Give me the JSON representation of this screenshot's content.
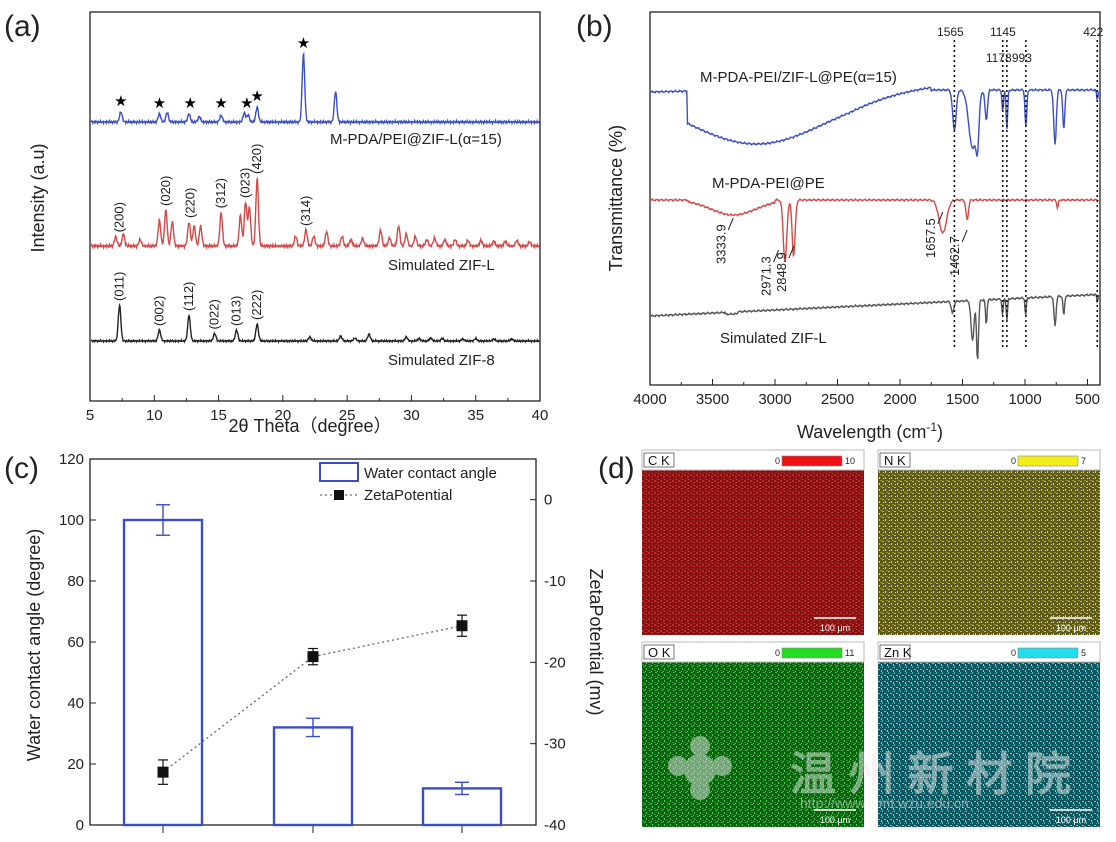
{
  "panels": {
    "a": "(a)",
    "b": "(b)",
    "c": "(c)",
    "d": "(d)"
  },
  "chart_data": [
    {
      "type": "line",
      "panel": "(a)",
      "xlabel": "2θ Theta（degree）",
      "ylabel": "Intensity (a.u)",
      "xlim": [
        5,
        40
      ],
      "xticks": [
        5,
        10,
        15,
        20,
        25,
        30,
        35,
        40
      ],
      "series": [
        {
          "name": "M-PDA/PEI@ZIF-L(α=15)",
          "color": "#3a4fc4",
          "peaks": [
            [
              7.4,
              0.15
            ],
            [
              10.4,
              0.12
            ],
            [
              11.0,
              0.14
            ],
            [
              12.7,
              0.12
            ],
            [
              13.5,
              0.08
            ],
            [
              15.2,
              0.1
            ],
            [
              17.0,
              0.13
            ],
            [
              17.3,
              0.1
            ],
            [
              18.0,
              0.22
            ],
            [
              21.6,
              1.0
            ],
            [
              24.1,
              0.45
            ]
          ],
          "stars_at": [
            7.4,
            10.4,
            12.8,
            15.2,
            17.2,
            18.0,
            21.6
          ]
        },
        {
          "name": "Simulated  ZIF-L",
          "color": "#d04a4a",
          "peaks": [
            [
              7.0,
              0.12
            ],
            [
              7.6,
              0.15
            ],
            [
              8.9,
              0.08
            ],
            [
              10.4,
              0.32
            ],
            [
              10.9,
              0.45
            ],
            [
              11.4,
              0.3
            ],
            [
              12.7,
              0.3
            ],
            [
              13.1,
              0.25
            ],
            [
              13.6,
              0.25
            ],
            [
              15.2,
              0.42
            ],
            [
              16.7,
              0.38
            ],
            [
              17.1,
              0.55
            ],
            [
              17.4,
              0.48
            ],
            [
              18.0,
              0.85
            ],
            [
              21.0,
              0.12
            ],
            [
              21.8,
              0.2
            ],
            [
              22.4,
              0.12
            ],
            [
              23.4,
              0.18
            ],
            [
              24.6,
              0.12
            ],
            [
              25.3,
              0.08
            ],
            [
              26.2,
              0.1
            ],
            [
              27.6,
              0.2
            ],
            [
              28.3,
              0.1
            ],
            [
              29.0,
              0.25
            ],
            [
              29.6,
              0.15
            ],
            [
              30.3,
              0.12
            ],
            [
              31.2,
              0.08
            ],
            [
              31.8,
              0.1
            ],
            [
              32.6,
              0.08
            ],
            [
              33.4,
              0.08
            ],
            [
              34.4,
              0.07
            ],
            [
              35.4,
              0.07
            ],
            [
              36.4,
              0.06
            ],
            [
              37.3,
              0.06
            ],
            [
              38.2,
              0.07
            ],
            [
              39.2,
              0.05
            ]
          ],
          "labels": [
            [
              7.3,
              "(200)"
            ],
            [
              10.9,
              "(020)"
            ],
            [
              12.8,
              "(220)"
            ],
            [
              15.2,
              "(312)"
            ],
            [
              17.1,
              "(023)"
            ],
            [
              18.0,
              "(420)"
            ],
            [
              21.8,
              "(314)"
            ]
          ]
        },
        {
          "name": "Simulated  ZIF-8",
          "color": "#222222",
          "peaks": [
            [
              7.3,
              0.72
            ],
            [
              10.4,
              0.22
            ],
            [
              12.7,
              0.52
            ],
            [
              14.7,
              0.15
            ],
            [
              16.4,
              0.22
            ],
            [
              18.0,
              0.34
            ],
            [
              22.1,
              0.08
            ],
            [
              24.5,
              0.1
            ],
            [
              25.6,
              0.06
            ],
            [
              26.7,
              0.14
            ],
            [
              29.6,
              0.08
            ],
            [
              30.6,
              0.05
            ],
            [
              31.5,
              0.06
            ],
            [
              32.4,
              0.05
            ],
            [
              34.0,
              0.04
            ],
            [
              35.0,
              0.05
            ],
            [
              36.4,
              0.04
            ],
            [
              37.8,
              0.04
            ]
          ],
          "labels": [
            [
              7.3,
              "(011)"
            ],
            [
              10.4,
              "(002)"
            ],
            [
              12.7,
              "(112)"
            ],
            [
              14.7,
              "(022)"
            ],
            [
              16.4,
              "(013)"
            ],
            [
              18.0,
              "(222)"
            ]
          ]
        }
      ]
    },
    {
      "type": "line",
      "panel": "(b)",
      "xlabel": "Wavelength (cm",
      "xlabel_sup": "-1",
      "xlabel_end": ")",
      "ylabel": "Transmittance (%)",
      "xlim": [
        4000,
        400
      ],
      "xticks": [
        4000,
        3500,
        3000,
        2500,
        2000,
        1500,
        1000,
        500
      ],
      "vlines": [
        1565,
        1178,
        1145,
        993,
        422
      ],
      "vline_labels": [
        "1565",
        "1178",
        "1145",
        "993",
        "422"
      ],
      "series": [
        {
          "name": "M-PDA-PEI/ZIF-L@PE(α=15)",
          "color": "#3a4fc4"
        },
        {
          "name": "M-PDA-PEI@PE",
          "color": "#d04a4a",
          "annotations": [
            "3333.9",
            "2971.3",
            "2848.9",
            "1657.5",
            "1462.7"
          ],
          "annotation_x": [
            3333.9,
            2971.3,
            2848.9,
            1657.5,
            1462.7
          ]
        },
        {
          "name": "Simulated ZIF-L",
          "color": "#555555"
        }
      ]
    },
    {
      "type": "bar",
      "panel": "(c)",
      "ylabel": "Water contact angle (degree)",
      "y2label": "ZetaPotential (mv)",
      "ylim": [
        0,
        120
      ],
      "yticks": [
        0,
        20,
        40,
        60,
        80,
        100,
        120
      ],
      "y2lim": [
        -40,
        5
      ],
      "y2ticks": [
        0,
        -10,
        -20,
        -30,
        -40
      ],
      "categories": [
        "",
        "",
        ""
      ],
      "series": [
        {
          "name": "Water contact angle",
          "values": [
            100,
            32,
            12
          ],
          "errors": [
            5,
            3,
            2
          ],
          "color": "#3a4fc4"
        },
        {
          "name": "ZetaPotential",
          "values": [
            -33.5,
            -19.3,
            -15.5
          ],
          "errors": [
            1.5,
            1.0,
            1.3
          ],
          "color": "#111111"
        }
      ]
    }
  ],
  "eds_maps": [
    {
      "label": "C K",
      "scale_min": "0",
      "scale_max": "10",
      "scale_color": "#ee1111",
      "map_color": "#b81818",
      "scalebar": "100 μm"
    },
    {
      "label": "N K",
      "scale_min": "0",
      "scale_max": "7",
      "scale_color": "#f3ee1a",
      "map_color": "#8f8a1e",
      "scalebar": "100 μm"
    },
    {
      "label": "O K",
      "scale_min": "0",
      "scale_max": "11",
      "scale_color": "#22dd22",
      "map_color": "#1f9a24",
      "scalebar": "100 μm"
    },
    {
      "label": "Zn K",
      "scale_min": "0",
      "scale_max": "5",
      "scale_color": "#22ddee",
      "map_color": "#2aa6b3",
      "scalebar": "100 μm"
    }
  ],
  "watermark": {
    "text": "温 州 新 材 院",
    "url": "http://www.ixmt.wzu.edu.cn"
  }
}
